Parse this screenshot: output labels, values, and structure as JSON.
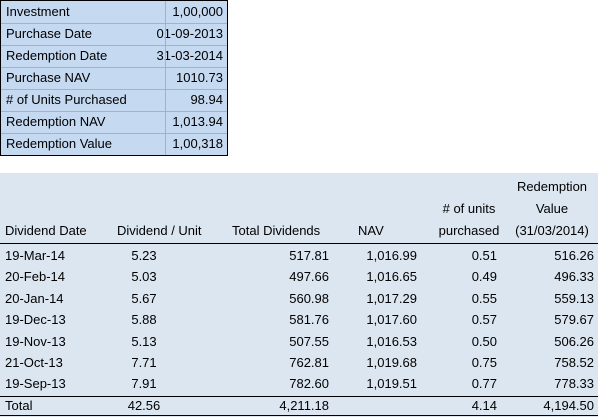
{
  "summary": {
    "rows": [
      [
        "Investment",
        "1,00,000"
      ],
      [
        "Purchase Date",
        "01-09-2013"
      ],
      [
        "Redemption Date",
        "31-03-2014"
      ],
      [
        "Purchase NAV",
        "1010.73"
      ],
      [
        "# of Units Purchased",
        "98.94"
      ],
      [
        "Redemption NAV",
        "1,013.94"
      ],
      [
        "Redemption Value",
        "1,00,318"
      ]
    ]
  },
  "dividends": {
    "headers": [
      [
        "Dividend Date"
      ],
      [
        "Dividend / Unit"
      ],
      [
        "Total Dividends"
      ],
      [
        "NAV"
      ],
      [
        "# of units",
        "purchased"
      ],
      [
        "Redemption",
        "Value",
        "(31/03/2014)"
      ]
    ],
    "rows": [
      [
        "19-Mar-14",
        "5.23",
        "517.81",
        "1,016.99",
        "0.51",
        "516.26"
      ],
      [
        "20-Feb-14",
        "5.03",
        "497.66",
        "1,016.65",
        "0.49",
        "496.33"
      ],
      [
        "20-Jan-14",
        "5.67",
        "560.98",
        "1,017.29",
        "0.55",
        "559.13"
      ],
      [
        "19-Dec-13",
        "5.88",
        "581.76",
        "1,017.60",
        "0.57",
        "579.67"
      ],
      [
        "19-Nov-13",
        "5.13",
        "507.55",
        "1,016.53",
        "0.50",
        "506.26"
      ],
      [
        "21-Oct-13",
        "7.71",
        "762.81",
        "1,019.68",
        "0.75",
        "758.52"
      ],
      [
        "19-Sep-13",
        "7.91",
        "782.60",
        "1,019.51",
        "0.77",
        "778.33"
      ]
    ],
    "total": {
      "label": "Total",
      "dividend_per_unit": "42.56",
      "total_dividends": "4,211.18",
      "units": "4.14",
      "redemption_value": "4,194.50"
    }
  }
}
